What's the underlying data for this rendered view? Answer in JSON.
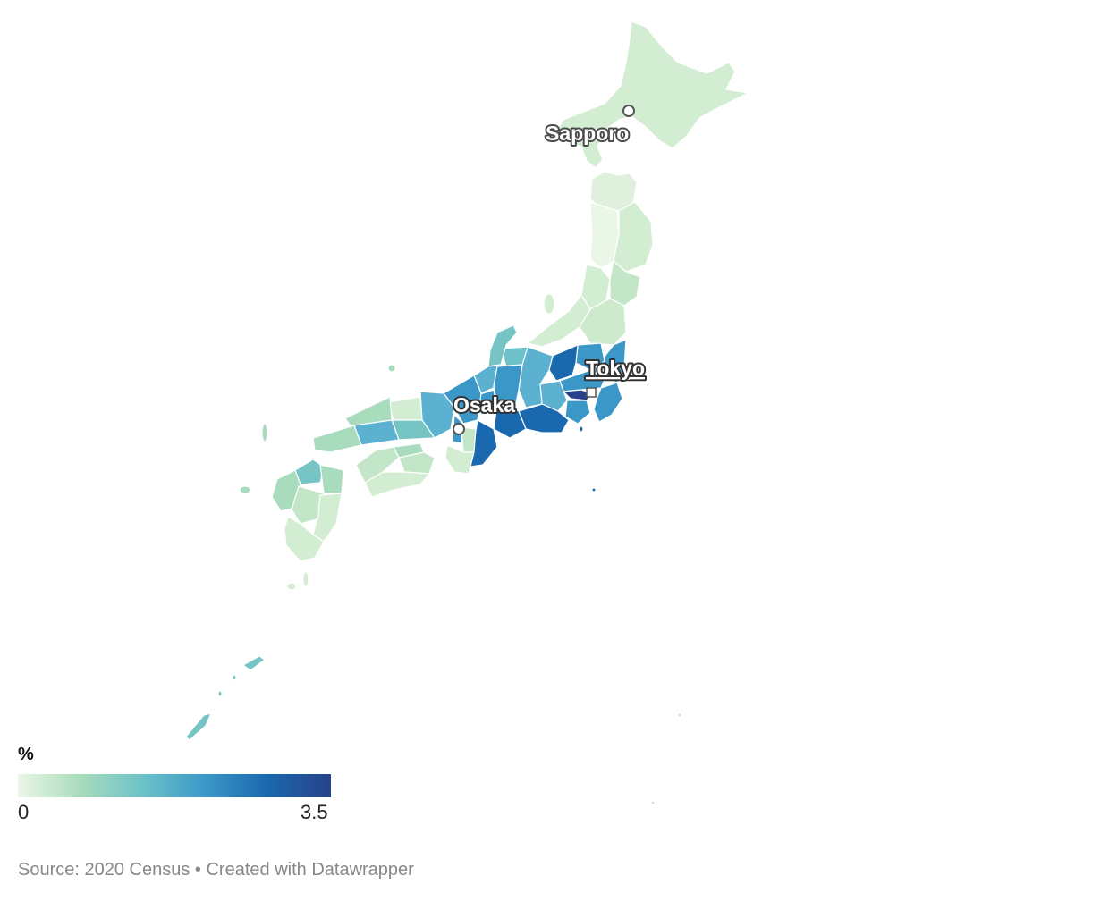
{
  "legend": {
    "unit": "%",
    "min_label": "0",
    "max_label": "3.5",
    "min": 0,
    "max": 3.5,
    "gradient": [
      "#eaf6e6",
      "#a8dcbc",
      "#6cc2c8",
      "#3a97c8",
      "#1a68ad",
      "#27428a"
    ]
  },
  "cities": {
    "sapporo": "Sapporo",
    "tokyo": "Tokyo",
    "osaka": "Osaka"
  },
  "footer": {
    "source": "Source: 2020 Census",
    "separator": "•",
    "credit": "Created with Datawrapper"
  },
  "colors": {
    "lightest": "#eaf6e6",
    "light_green": "#d3edd3",
    "green": "#a8dcbc",
    "teal": "#76c5c4",
    "light_blue": "#5bb1cf",
    "blue": "#3a97c8",
    "dark_blue": "#1a68ad",
    "darkest": "#27428a",
    "text_muted": "#888888"
  }
}
